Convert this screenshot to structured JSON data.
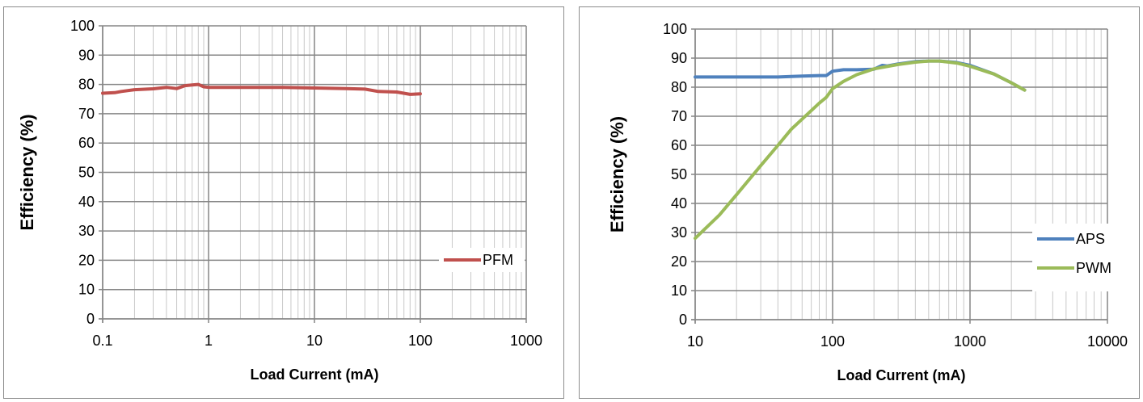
{
  "chart_data": [
    {
      "type": "line",
      "x_scale": "log",
      "xlim": [
        0.1,
        1000
      ],
      "ylim": [
        0,
        100
      ],
      "x_ticks": [
        "0.1",
        "1",
        "10",
        "100",
        "1000"
      ],
      "y_ticks": [
        "0",
        "10",
        "20",
        "30",
        "40",
        "50",
        "60",
        "70",
        "80",
        "90",
        "100"
      ],
      "xlabel": "Load Current (mA)",
      "ylabel": "Efficiency (%)",
      "grid": true,
      "legend_position": "right",
      "series": [
        {
          "name": "PFM",
          "color": "#c0504d",
          "x": [
            0.1,
            0.13,
            0.15,
            0.2,
            0.3,
            0.4,
            0.5,
            0.6,
            0.7,
            0.8,
            0.9,
            1,
            2,
            5,
            10,
            20,
            30,
            40,
            60,
            80,
            100
          ],
          "y": [
            77.0,
            77.2,
            77.6,
            78.2,
            78.5,
            79.0,
            78.6,
            79.6,
            79.8,
            80.0,
            79.2,
            79.0,
            79.0,
            79.0,
            78.8,
            78.6,
            78.4,
            77.6,
            77.4,
            76.6,
            76.8
          ]
        }
      ]
    },
    {
      "type": "line",
      "x_scale": "log",
      "xlim": [
        10,
        10000
      ],
      "ylim": [
        0,
        100
      ],
      "x_ticks": [
        "10",
        "100",
        "1000",
        "10000"
      ],
      "y_ticks": [
        "0",
        "10",
        "20",
        "30",
        "40",
        "50",
        "60",
        "70",
        "80",
        "90",
        "100"
      ],
      "xlabel": "Load Current (mA)",
      "ylabel": "Efficiency (%)",
      "grid": true,
      "legend_position": "right",
      "series": [
        {
          "name": "APS",
          "color": "#4f81bd",
          "x": [
            10,
            20,
            40,
            50,
            60,
            80,
            90,
            100,
            120,
            150,
            200,
            230,
            250,
            300,
            400,
            500,
            600,
            800,
            1000,
            1500,
            2000,
            2500
          ],
          "y": [
            83.5,
            83.5,
            83.5,
            83.7,
            83.8,
            84.0,
            84.0,
            85.5,
            86.0,
            86.0,
            86.2,
            87.5,
            87.3,
            88.0,
            88.8,
            89.0,
            89.0,
            88.5,
            87.5,
            84.5,
            81.5,
            79.0
          ]
        },
        {
          "name": "PWM",
          "color": "#9bbb59",
          "x": [
            10,
            15,
            20,
            30,
            40,
            50,
            60,
            80,
            90,
            100,
            120,
            150,
            200,
            300,
            400,
            500,
            600,
            800,
            1000,
            1500,
            2000,
            2500
          ],
          "y": [
            28,
            36,
            43,
            53,
            60,
            65.5,
            69,
            74.5,
            76.5,
            79.5,
            82,
            84.3,
            86.3,
            87.8,
            88.6,
            89.0,
            89.0,
            88.3,
            87.2,
            84.5,
            81.5,
            79.0
          ]
        }
      ]
    }
  ]
}
